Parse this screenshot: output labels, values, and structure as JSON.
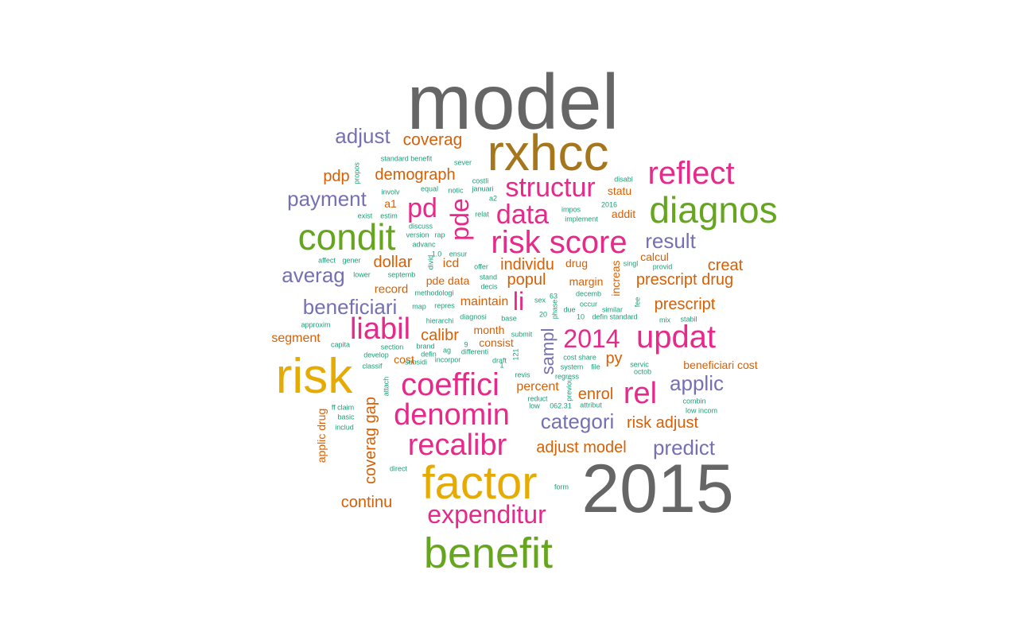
{
  "palette": {
    "gray": "#666666",
    "brown": "#a6761d",
    "gold": "#e6ab02",
    "green": "#66a61e",
    "magenta": "#e7298a",
    "purple": "#7570b3",
    "orange": "#d95f02",
    "teal": "#1b9e77"
  },
  "words": [
    {
      "text": "model",
      "color": "gray",
      "weight": 8
    },
    {
      "text": "2015",
      "color": "gray",
      "weight": 8
    },
    {
      "text": "rxhcc",
      "color": "brown",
      "weight": 7
    },
    {
      "text": "risk",
      "color": "gold",
      "weight": 7
    },
    {
      "text": "factor",
      "color": "gold",
      "weight": 7
    },
    {
      "text": "benefit",
      "color": "green",
      "weight": 6
    },
    {
      "text": "diagnos",
      "color": "green",
      "weight": 5
    },
    {
      "text": "condit",
      "color": "green",
      "weight": 5
    },
    {
      "text": "reflect",
      "color": "magenta",
      "weight": 4
    },
    {
      "text": "risk score",
      "color": "magenta",
      "weight": 4
    },
    {
      "text": "coeffici",
      "color": "magenta",
      "weight": 4
    },
    {
      "text": "updat",
      "color": "magenta",
      "weight": 4
    },
    {
      "text": "denomin",
      "color": "magenta",
      "weight": 4
    },
    {
      "text": "recalibr",
      "color": "magenta",
      "weight": 4
    },
    {
      "text": "rel",
      "color": "magenta",
      "weight": 4
    },
    {
      "text": "liabil",
      "color": "magenta",
      "weight": 4
    },
    {
      "text": "structur",
      "color": "magenta",
      "weight": 3
    },
    {
      "text": "data",
      "color": "magenta",
      "weight": 3
    },
    {
      "text": "pd",
      "color": "magenta",
      "weight": 3
    },
    {
      "text": "pde",
      "color": "magenta",
      "weight": 3
    },
    {
      "text": "2014",
      "color": "magenta",
      "weight": 3
    },
    {
      "text": "expenditur",
      "color": "magenta",
      "weight": 3
    },
    {
      "text": "li",
      "color": "magenta",
      "weight": 3
    },
    {
      "text": "sampl",
      "color": "purple",
      "weight": 2
    },
    {
      "text": "adjust",
      "color": "purple",
      "weight": 2
    },
    {
      "text": "payment",
      "color": "purple",
      "weight": 2
    },
    {
      "text": "averag",
      "color": "purple",
      "weight": 2
    },
    {
      "text": "beneficiari",
      "color": "purple",
      "weight": 2
    },
    {
      "text": "result",
      "color": "purple",
      "weight": 2
    },
    {
      "text": "applic",
      "color": "purple",
      "weight": 2
    },
    {
      "text": "categori",
      "color": "purple",
      "weight": 2
    },
    {
      "text": "predict",
      "color": "purple",
      "weight": 2
    },
    {
      "text": "coverag",
      "color": "orange",
      "weight": 2
    },
    {
      "text": "pdp",
      "color": "orange",
      "weight": 2
    },
    {
      "text": "demograph",
      "color": "orange",
      "weight": 2
    },
    {
      "text": "creat",
      "color": "orange",
      "weight": 2
    },
    {
      "text": "prescript drug",
      "color": "orange",
      "weight": 2
    },
    {
      "text": "prescript",
      "color": "orange",
      "weight": 2
    },
    {
      "text": "dollar",
      "color": "orange",
      "weight": 2
    },
    {
      "text": "popul",
      "color": "orange",
      "weight": 2
    },
    {
      "text": "individu",
      "color": "orange",
      "weight": 2
    },
    {
      "text": "calibr",
      "color": "orange",
      "weight": 2
    },
    {
      "text": "maintain",
      "color": "orange",
      "weight": 2
    },
    {
      "text": "segment",
      "color": "orange",
      "weight": 2
    },
    {
      "text": "enrol",
      "color": "orange",
      "weight": 2
    },
    {
      "text": "risk adjust",
      "color": "orange",
      "weight": 2
    },
    {
      "text": "adjust model",
      "color": "orange",
      "weight": 2
    },
    {
      "text": "continu",
      "color": "orange",
      "weight": 2
    },
    {
      "text": "coverag gap",
      "color": "orange",
      "weight": 2
    },
    {
      "text": "py",
      "color": "orange",
      "weight": 2
    },
    {
      "text": "percent",
      "color": "orange",
      "weight": 1
    },
    {
      "text": "statu",
      "color": "orange",
      "weight": 1
    },
    {
      "text": "calcul",
      "color": "orange",
      "weight": 1
    },
    {
      "text": "addit",
      "color": "orange",
      "weight": 1
    },
    {
      "text": "margin",
      "color": "orange",
      "weight": 1
    },
    {
      "text": "drug",
      "color": "orange",
      "weight": 1
    },
    {
      "text": "pde data",
      "color": "orange",
      "weight": 1
    },
    {
      "text": "record",
      "color": "orange",
      "weight": 1
    },
    {
      "text": "icd",
      "color": "orange",
      "weight": 1
    },
    {
      "text": "a1",
      "color": "orange",
      "weight": 1
    },
    {
      "text": "consist",
      "color": "orange",
      "weight": 1
    },
    {
      "text": "month",
      "color": "orange",
      "weight": 1
    },
    {
      "text": "cost",
      "color": "orange",
      "weight": 1
    },
    {
      "text": "beneficiari cost",
      "color": "orange",
      "weight": 1
    },
    {
      "text": "applic drug",
      "color": "orange",
      "weight": 1
    },
    {
      "text": "increas",
      "color": "orange",
      "weight": 1
    },
    {
      "text": "standard benefit",
      "color": "teal",
      "weight": 0
    },
    {
      "text": "sever",
      "color": "teal",
      "weight": 0
    },
    {
      "text": "propos",
      "color": "teal",
      "weight": 0
    },
    {
      "text": "involv",
      "color": "teal",
      "weight": 0
    },
    {
      "text": "equal",
      "color": "teal",
      "weight": 0
    },
    {
      "text": "notic",
      "color": "teal",
      "weight": 0
    },
    {
      "text": "januari",
      "color": "teal",
      "weight": 0
    },
    {
      "text": "costli",
      "color": "teal",
      "weight": 0
    },
    {
      "text": "a2",
      "color": "teal",
      "weight": 0
    },
    {
      "text": "disabl",
      "color": "teal",
      "weight": 0
    },
    {
      "text": "exist",
      "color": "teal",
      "weight": 0
    },
    {
      "text": "estim",
      "color": "teal",
      "weight": 0
    },
    {
      "text": "impos",
      "color": "teal",
      "weight": 0
    },
    {
      "text": "2016",
      "color": "teal",
      "weight": 0
    },
    {
      "text": "relat",
      "color": "teal",
      "weight": 0
    },
    {
      "text": "implement",
      "color": "teal",
      "weight": 0
    },
    {
      "text": "discuss",
      "color": "teal",
      "weight": 0
    },
    {
      "text": "version",
      "color": "teal",
      "weight": 0
    },
    {
      "text": "rap",
      "color": "teal",
      "weight": 0
    },
    {
      "text": "advanc",
      "color": "teal",
      "weight": 0
    },
    {
      "text": "1.0",
      "color": "teal",
      "weight": 0
    },
    {
      "text": "ensur",
      "color": "teal",
      "weight": 0
    },
    {
      "text": "affect",
      "color": "teal",
      "weight": 0
    },
    {
      "text": "gener",
      "color": "teal",
      "weight": 0
    },
    {
      "text": "divid",
      "color": "teal",
      "weight": 0
    },
    {
      "text": "offer",
      "color": "teal",
      "weight": 0
    },
    {
      "text": "singl",
      "color": "teal",
      "weight": 0
    },
    {
      "text": "provid",
      "color": "teal",
      "weight": 0
    },
    {
      "text": "lower",
      "color": "teal",
      "weight": 0
    },
    {
      "text": "septemb",
      "color": "teal",
      "weight": 0
    },
    {
      "text": "stand",
      "color": "teal",
      "weight": 0
    },
    {
      "text": "decis",
      "color": "teal",
      "weight": 0
    },
    {
      "text": "methodologi",
      "color": "teal",
      "weight": 0
    },
    {
      "text": "63",
      "color": "teal",
      "weight": 0
    },
    {
      "text": "decemb",
      "color": "teal",
      "weight": 0
    },
    {
      "text": "sex",
      "color": "teal",
      "weight": 0
    },
    {
      "text": "map",
      "color": "teal",
      "weight": 0
    },
    {
      "text": "repres",
      "color": "teal",
      "weight": 0
    },
    {
      "text": "due",
      "color": "teal",
      "weight": 0
    },
    {
      "text": "occur",
      "color": "teal",
      "weight": 0
    },
    {
      "text": "fee",
      "color": "teal",
      "weight": 0
    },
    {
      "text": "similar",
      "color": "teal",
      "weight": 0
    },
    {
      "text": "phase",
      "color": "teal",
      "weight": 0
    },
    {
      "text": "diagnosi",
      "color": "teal",
      "weight": 0
    },
    {
      "text": "base",
      "color": "teal",
      "weight": 0
    },
    {
      "text": "20",
      "color": "teal",
      "weight": 0
    },
    {
      "text": "10",
      "color": "teal",
      "weight": 0
    },
    {
      "text": "defin standard",
      "color": "teal",
      "weight": 0
    },
    {
      "text": "mix",
      "color": "teal",
      "weight": 0
    },
    {
      "text": "stabil",
      "color": "teal",
      "weight": 0
    },
    {
      "text": "approxim",
      "color": "teal",
      "weight": 0
    },
    {
      "text": "hierarchi",
      "color": "teal",
      "weight": 0
    },
    {
      "text": "submit",
      "color": "teal",
      "weight": 0
    },
    {
      "text": "capita",
      "color": "teal",
      "weight": 0
    },
    {
      "text": "section",
      "color": "teal",
      "weight": 0
    },
    {
      "text": "brand",
      "color": "teal",
      "weight": 0
    },
    {
      "text": "develop",
      "color": "teal",
      "weight": 0
    },
    {
      "text": "ag",
      "color": "teal",
      "weight": 0
    },
    {
      "text": "differenti",
      "color": "teal",
      "weight": 0
    },
    {
      "text": "defin",
      "color": "teal",
      "weight": 0
    },
    {
      "text": "classif",
      "color": "teal",
      "weight": 0
    },
    {
      "text": "subsidi",
      "color": "teal",
      "weight": 0
    },
    {
      "text": "incorpor",
      "color": "teal",
      "weight": 0
    },
    {
      "text": "draft",
      "color": "teal",
      "weight": 0
    },
    {
      "text": "cost share",
      "color": "teal",
      "weight": 0
    },
    {
      "text": "system",
      "color": "teal",
      "weight": 0
    },
    {
      "text": "file",
      "color": "teal",
      "weight": 0
    },
    {
      "text": "servic",
      "color": "teal",
      "weight": 0
    },
    {
      "text": "octob",
      "color": "teal",
      "weight": 0
    },
    {
      "text": "revis",
      "color": "teal",
      "weight": 0
    },
    {
      "text": "regress",
      "color": "teal",
      "weight": 0
    },
    {
      "text": "previou",
      "color": "teal",
      "weight": 0
    },
    {
      "text": "ff claim",
      "color": "teal",
      "weight": 0
    },
    {
      "text": "attach",
      "color": "teal",
      "weight": 0
    },
    {
      "text": "basic",
      "color": "teal",
      "weight": 0
    },
    {
      "text": "reduct",
      "color": "teal",
      "weight": 0
    },
    {
      "text": "low",
      "color": "teal",
      "weight": 0
    },
    {
      "text": "062.31",
      "color": "teal",
      "weight": 0
    },
    {
      "text": "attribut",
      "color": "teal",
      "weight": 0
    },
    {
      "text": "combin",
      "color": "teal",
      "weight": 0
    },
    {
      "text": "low incom",
      "color": "teal",
      "weight": 0
    },
    {
      "text": "includ",
      "color": "teal",
      "weight": 0
    },
    {
      "text": "direct",
      "color": "teal",
      "weight": 0
    },
    {
      "text": "form",
      "color": "teal",
      "weight": 0
    },
    {
      "text": "9",
      "color": "teal",
      "weight": 0
    },
    {
      "text": "1",
      "color": "teal",
      "weight": 0
    },
    {
      "text": "121",
      "color": "teal",
      "weight": 0
    }
  ]
}
